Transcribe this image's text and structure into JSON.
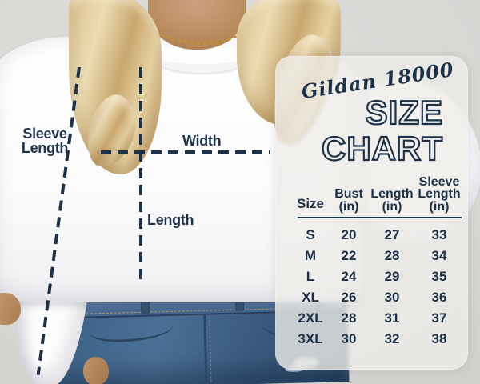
{
  "colors": {
    "navy": "#1d3148",
    "gold": "#c19136",
    "denim_stitch": "#c59a5d",
    "background_grey": "#d8d6d3",
    "sweatshirt_white": "#fbfbfc",
    "denim_blue": "#44658b",
    "hair_blonde": "#d9bd8c",
    "skin": "#bc8f66",
    "panel_overlay": "#eeece9"
  },
  "annotations": {
    "sleeve_length_label": "Sleeve\nLength",
    "width_label": "Width",
    "length_label": "Length"
  },
  "size_chart": {
    "brand_line": "Gildan 18000",
    "title_line1": "SIZE",
    "title_line2": "CHART",
    "columns": [
      "Size",
      "Bust\n(in)",
      "Length\n(in)",
      "Sleeve\nLength\n(in)"
    ],
    "rows": [
      [
        "S",
        "20",
        "27",
        "33"
      ],
      [
        "M",
        "22",
        "28",
        "34"
      ],
      [
        "L",
        "24",
        "29",
        "35"
      ],
      [
        "XL",
        "26",
        "30",
        "36"
      ],
      [
        "2XL",
        "28",
        "31",
        "37"
      ],
      [
        "3XL",
        "30",
        "32",
        "38"
      ]
    ]
  },
  "chart_data": {
    "type": "table",
    "title": "Gildan 18000 Size Chart",
    "columns": [
      "Size",
      "Bust (in)",
      "Length (in)",
      "Sleeve Length (in)"
    ],
    "rows": [
      [
        "S",
        20,
        27,
        33
      ],
      [
        "M",
        22,
        28,
        34
      ],
      [
        "L",
        24,
        29,
        35
      ],
      [
        "XL",
        26,
        30,
        36
      ],
      [
        "2XL",
        28,
        31,
        37
      ],
      [
        "3XL",
        30,
        32,
        38
      ]
    ],
    "notes": "Measurement lines drawn on sweatshirt photo: Sleeve Length (diagonal along left sleeve), Width (horizontal across chest), Length (vertical down body)"
  }
}
